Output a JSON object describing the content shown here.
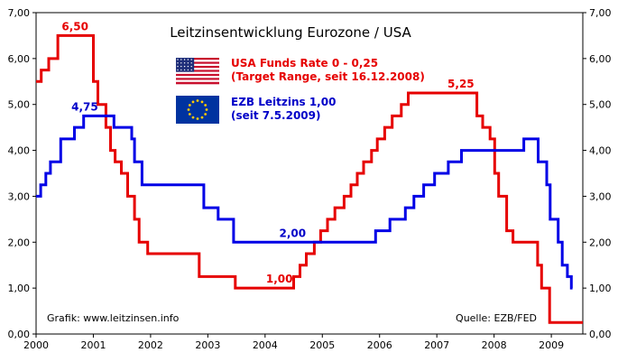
{
  "chart_data": {
    "type": "line",
    "title": "Leitzinsentwicklung Eurozone / USA",
    "xlabel": "",
    "ylabel": "",
    "x_ticks": [
      "2000",
      "2001",
      "2002",
      "2003",
      "2004",
      "2005",
      "2006",
      "2007",
      "2008",
      "2009"
    ],
    "y_ticks": [
      "0,00",
      "1,00",
      "2,00",
      "3,00",
      "4,00",
      "5,00",
      "6,00",
      "7,00"
    ],
    "xlim": [
      2000.0,
      2009.55
    ],
    "ylim": [
      0,
      7
    ],
    "grid": false,
    "series": [
      {
        "name": "USA Funds Rate 0 - 0,25",
        "legend_line2": "(Target Range, seit 16.12.2008)",
        "color": "#e60000",
        "steps": [
          [
            2000.0,
            5.5
          ],
          [
            2000.09,
            5.75
          ],
          [
            2000.22,
            6.0
          ],
          [
            2000.38,
            6.5
          ],
          [
            2001.0,
            5.5
          ],
          [
            2001.08,
            5.0
          ],
          [
            2001.22,
            4.5
          ],
          [
            2001.3,
            4.0
          ],
          [
            2001.38,
            3.75
          ],
          [
            2001.49,
            3.5
          ],
          [
            2001.6,
            3.0
          ],
          [
            2001.72,
            2.5
          ],
          [
            2001.8,
            2.0
          ],
          [
            2001.95,
            1.75
          ],
          [
            2002.85,
            1.25
          ],
          [
            2003.48,
            1.0
          ],
          [
            2004.5,
            1.25
          ],
          [
            2004.61,
            1.5
          ],
          [
            2004.72,
            1.75
          ],
          [
            2004.86,
            2.0
          ],
          [
            2004.97,
            2.25
          ],
          [
            2005.09,
            2.5
          ],
          [
            2005.22,
            2.75
          ],
          [
            2005.38,
            3.0
          ],
          [
            2005.5,
            3.25
          ],
          [
            2005.61,
            3.5
          ],
          [
            2005.72,
            3.75
          ],
          [
            2005.86,
            4.0
          ],
          [
            2005.96,
            4.25
          ],
          [
            2006.09,
            4.5
          ],
          [
            2006.22,
            4.75
          ],
          [
            2006.38,
            5.0
          ],
          [
            2006.5,
            5.25
          ],
          [
            2007.7,
            4.75
          ],
          [
            2007.8,
            4.5
          ],
          [
            2007.93,
            4.25
          ],
          [
            2008.01,
            3.5
          ],
          [
            2008.08,
            3.0
          ],
          [
            2008.22,
            2.25
          ],
          [
            2008.33,
            2.0
          ],
          [
            2008.76,
            1.5
          ],
          [
            2008.83,
            1.0
          ],
          [
            2008.97,
            0.25
          ],
          [
            2009.55,
            0.25
          ]
        ],
        "peak_labels": [
          {
            "text": "6,50",
            "x": 2000.68,
            "y": 6.5
          },
          {
            "text": "1,00",
            "x": 2004.25,
            "y": 1.0
          },
          {
            "text": "5,25",
            "x": 2007.42,
            "y": 5.25
          }
        ]
      },
      {
        "name": "EZB Leitzins 1,00",
        "legend_line2": "(seit 7.5.2009)",
        "color": "#0000e6",
        "steps": [
          [
            2000.0,
            3.0
          ],
          [
            2000.08,
            3.25
          ],
          [
            2000.17,
            3.5
          ],
          [
            2000.25,
            3.75
          ],
          [
            2000.43,
            4.25
          ],
          [
            2000.67,
            4.5
          ],
          [
            2000.83,
            4.75
          ],
          [
            2001.36,
            4.5
          ],
          [
            2001.67,
            4.25
          ],
          [
            2001.72,
            3.75
          ],
          [
            2001.85,
            3.25
          ],
          [
            2002.93,
            2.75
          ],
          [
            2003.18,
            2.5
          ],
          [
            2003.45,
            2.0
          ],
          [
            2005.93,
            2.25
          ],
          [
            2006.18,
            2.5
          ],
          [
            2006.45,
            2.75
          ],
          [
            2006.6,
            3.0
          ],
          [
            2006.77,
            3.25
          ],
          [
            2006.96,
            3.5
          ],
          [
            2007.2,
            3.75
          ],
          [
            2007.43,
            4.0
          ],
          [
            2008.52,
            4.25
          ],
          [
            2008.77,
            3.75
          ],
          [
            2008.92,
            3.25
          ],
          [
            2008.98,
            2.5
          ],
          [
            2009.12,
            2.0
          ],
          [
            2009.19,
            1.5
          ],
          [
            2009.28,
            1.25
          ],
          [
            2009.35,
            1.0
          ],
          [
            2009.37,
            1.0
          ]
        ],
        "peak_labels": [
          {
            "text": "4,75",
            "x": 2000.85,
            "y": 4.75
          },
          {
            "text": "2,00",
            "x": 2004.48,
            "y": 2.0
          }
        ]
      }
    ],
    "annotations": {
      "source_left": "Grafik: www.leitzinsen.info",
      "source_right": "Quelle: EZB/FED"
    }
  },
  "flags": {
    "us": "us-flag-icon",
    "eu": "eu-flag-icon"
  }
}
